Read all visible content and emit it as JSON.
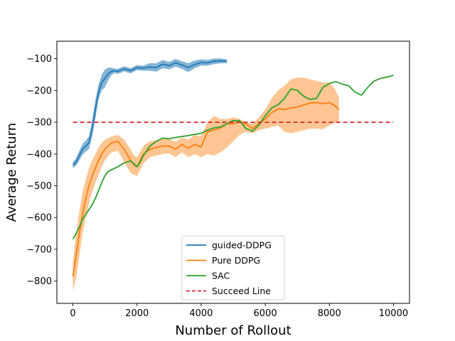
{
  "chart_data": {
    "type": "line",
    "title": "",
    "xlabel": "Number of Rollout",
    "ylabel": "Average Return",
    "xlim": [
      -500,
      10500
    ],
    "ylim": [
      -870,
      -45
    ],
    "x_ticks": [
      0,
      2000,
      4000,
      6000,
      8000,
      10000
    ],
    "y_ticks": [
      -800,
      -700,
      -600,
      -500,
      -400,
      -300,
      -200,
      -100
    ],
    "grid": false,
    "legend_position": "lower center",
    "colors": {
      "guided": "#1f77b4",
      "pure": "#ff7f0e",
      "sac": "#2ca02c",
      "succeed": "#d62728"
    },
    "series": [
      {
        "name": "guided-DDPG",
        "color": "#1f77b4",
        "band": true,
        "x": [
          0,
          100,
          200,
          300,
          400,
          500,
          600,
          700,
          800,
          900,
          1000,
          1100,
          1200,
          1300,
          1400,
          1600,
          1800,
          2000,
          2200,
          2400,
          2600,
          2800,
          3000,
          3200,
          3400,
          3600,
          3800,
          4000,
          4200,
          4400,
          4600,
          4800
        ],
        "y": [
          -435,
          -425,
          -405,
          -385,
          -375,
          -365,
          -320,
          -260,
          -205,
          -175,
          -162,
          -148,
          -140,
          -138,
          -140,
          -132,
          -138,
          -128,
          -130,
          -126,
          -128,
          -117,
          -122,
          -113,
          -120,
          -128,
          -118,
          -112,
          -113,
          -108,
          -107,
          -108
        ],
        "lower": [
          -445,
          -437,
          -420,
          -402,
          -392,
          -385,
          -345,
          -290,
          -228,
          -200,
          -190,
          -168,
          -152,
          -145,
          -148,
          -140,
          -146,
          -136,
          -138,
          -138,
          -141,
          -130,
          -134,
          -125,
          -132,
          -142,
          -130,
          -122,
          -122,
          -117,
          -115,
          -114
        ],
        "upper": [
          -425,
          -413,
          -390,
          -368,
          -358,
          -345,
          -295,
          -230,
          -182,
          -150,
          -134,
          -128,
          -128,
          -131,
          -132,
          -124,
          -130,
          -120,
          -122,
          -114,
          -115,
          -104,
          -110,
          -101,
          -108,
          -114,
          -106,
          -102,
          -104,
          -99,
          -99,
          -102
        ]
      },
      {
        "name": "Pure DDPG",
        "color": "#ff7f0e",
        "band": true,
        "x": [
          0,
          100,
          200,
          300,
          400,
          500,
          600,
          700,
          800,
          900,
          1000,
          1200,
          1400,
          1600,
          1800,
          1900,
          2000,
          2200,
          2400,
          2600,
          2800,
          3000,
          3200,
          3400,
          3600,
          3800,
          4000,
          4200,
          4400,
          4600,
          4800,
          5000,
          5200,
          5400,
          5600,
          5800,
          6000,
          6200,
          6400,
          6600,
          6800,
          7000,
          7200,
          7400,
          7600,
          7800,
          8000,
          8200,
          8300
        ],
        "y": [
          -785,
          -720,
          -650,
          -590,
          -540,
          -500,
          -470,
          -445,
          -420,
          -400,
          -385,
          -365,
          -360,
          -385,
          -420,
          -435,
          -440,
          -400,
          -385,
          -380,
          -375,
          -375,
          -385,
          -370,
          -382,
          -370,
          -378,
          -330,
          -325,
          -318,
          -305,
          -305,
          -298,
          -305,
          -320,
          -305,
          -290,
          -270,
          -258,
          -260,
          -255,
          -252,
          -245,
          -240,
          -238,
          -242,
          -238,
          -250,
          -260
        ],
        "lower": [
          -830,
          -790,
          -720,
          -650,
          -600,
          -555,
          -520,
          -490,
          -465,
          -440,
          -420,
          -395,
          -390,
          -425,
          -460,
          -465,
          -470,
          -430,
          -410,
          -405,
          -400,
          -398,
          -410,
          -395,
          -410,
          -400,
          -410,
          -400,
          -405,
          -395,
          -380,
          -360,
          -340,
          -330,
          -335,
          -325,
          -320,
          -315,
          -310,
          -330,
          -335,
          -330,
          -325,
          -320,
          -320,
          -322,
          -310,
          -300,
          -300
        ],
        "upper": [
          -740,
          -650,
          -580,
          -520,
          -480,
          -445,
          -420,
          -400,
          -380,
          -365,
          -355,
          -345,
          -340,
          -355,
          -385,
          -405,
          -410,
          -375,
          -360,
          -358,
          -352,
          -352,
          -362,
          -348,
          -355,
          -340,
          -345,
          -300,
          -280,
          -290,
          -290,
          -285,
          -290,
          -300,
          -305,
          -285,
          -260,
          -225,
          -200,
          -185,
          -165,
          -160,
          -160,
          -165,
          -170,
          -175,
          -175,
          -200,
          -225
        ]
      },
      {
        "name": "SAC",
        "color": "#2ca02c",
        "band": false,
        "x": [
          0,
          100,
          200,
          300,
          400,
          500,
          600,
          700,
          800,
          900,
          1000,
          1100,
          1200,
          1400,
          1600,
          1800,
          1900,
          2000,
          2100,
          2200,
          2400,
          2600,
          2800,
          3000,
          3200,
          3400,
          3600,
          3800,
          4000,
          4200,
          4400,
          4600,
          4800,
          5000,
          5200,
          5400,
          5600,
          5800,
          6000,
          6200,
          6400,
          6600,
          6800,
          7000,
          7200,
          7400,
          7600,
          7800,
          8000,
          8200,
          8400,
          8600,
          8800,
          9000,
          9200,
          9400,
          9600,
          9800,
          10000
        ],
        "y": [
          -668,
          -650,
          -630,
          -605,
          -590,
          -575,
          -560,
          -540,
          -515,
          -490,
          -468,
          -455,
          -450,
          -440,
          -428,
          -422,
          -430,
          -440,
          -425,
          -405,
          -375,
          -360,
          -350,
          -352,
          -348,
          -345,
          -342,
          -338,
          -335,
          -325,
          -318,
          -315,
          -305,
          -295,
          -295,
          -320,
          -328,
          -310,
          -280,
          -255,
          -245,
          -225,
          -195,
          -200,
          -218,
          -228,
          -225,
          -190,
          -178,
          -172,
          -180,
          -185,
          -205,
          -215,
          -190,
          -170,
          -162,
          -158,
          -152
        ]
      },
      {
        "name": "Succeed Line",
        "color": "#d62728",
        "dashed": true,
        "band": false,
        "x": [
          0,
          10000
        ],
        "y": [
          -300,
          -300
        ]
      }
    ]
  }
}
